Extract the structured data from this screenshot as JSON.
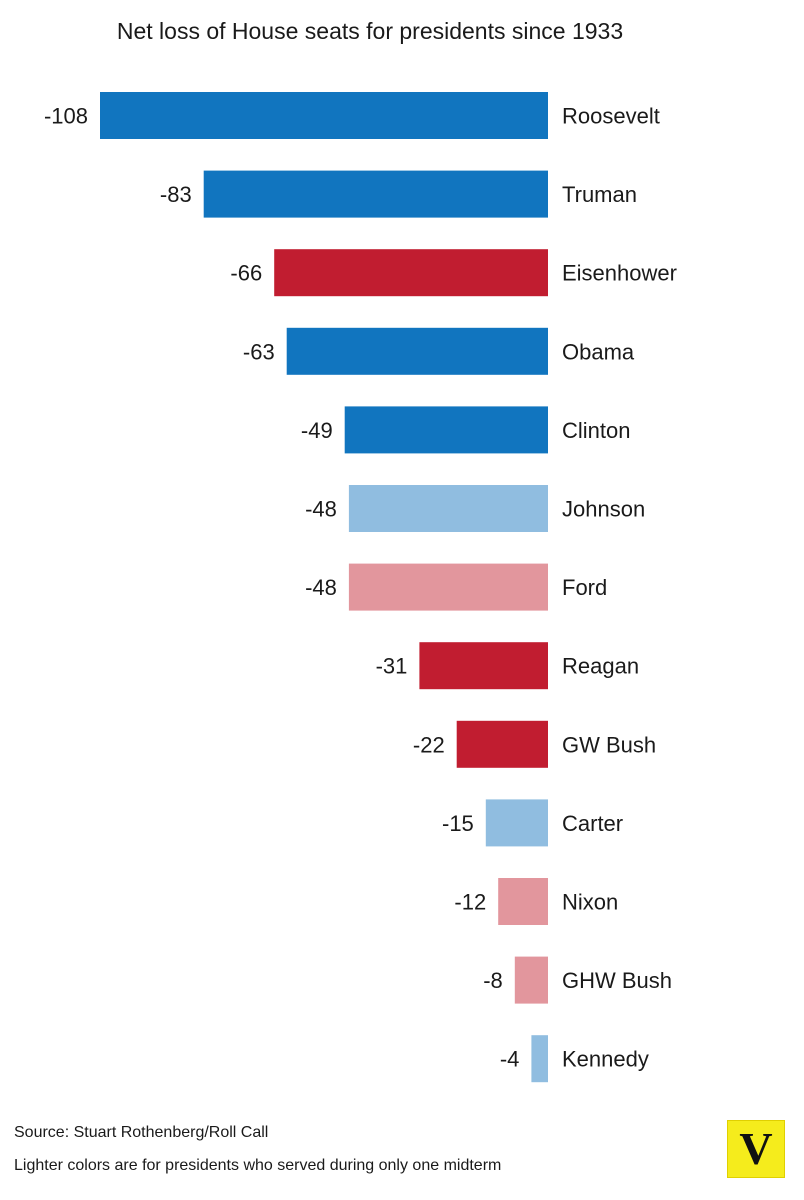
{
  "chart_data": {
    "type": "bar",
    "orientation": "horizontal",
    "title": "Net loss of House seats for presidents since 1933",
    "categories": [
      "Roosevelt",
      "Truman",
      "Eisenhower",
      "Obama",
      "Clinton",
      "Johnson",
      "Ford",
      "Reagan",
      "GW Bush",
      "Carter",
      "Nixon",
      "GHW Bush",
      "Kennedy"
    ],
    "values": [
      -108,
      -83,
      -66,
      -63,
      -49,
      -48,
      -48,
      -31,
      -22,
      -15,
      -12,
      -8,
      -4
    ],
    "value_labels": [
      "-108",
      "-83",
      "-66",
      "-63",
      "-49",
      "-48",
      "-48",
      "-31",
      "-22",
      "-15",
      "-12",
      "-8",
      "-4"
    ],
    "party": [
      "Democrat",
      "Democrat",
      "Republican",
      "Democrat",
      "Democrat",
      "Democrat",
      "Republican",
      "Republican",
      "Republican",
      "Democrat",
      "Republican",
      "Republican",
      "Democrat"
    ],
    "one_midterm_only": [
      false,
      false,
      false,
      false,
      false,
      true,
      true,
      false,
      false,
      true,
      true,
      true,
      true
    ],
    "colors": {
      "democrat": "#1175bf",
      "democrat_light": "#90bde0",
      "republican": "#c11d30",
      "republican_light": "#e2969d"
    },
    "xlim": [
      -108,
      0
    ],
    "grid": false,
    "legend": "none"
  },
  "footnotes": {
    "source": "Source: Stuart Rothenberg/Roll Call",
    "note": "Lighter colors are for presidents who served during only one midterm"
  },
  "logo": {
    "letter": "V",
    "color": "#f5ec1c"
  }
}
